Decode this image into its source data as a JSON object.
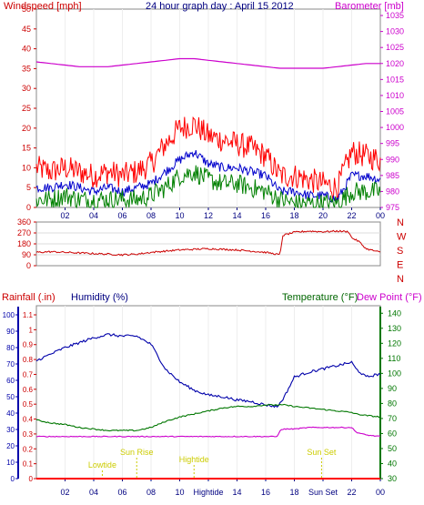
{
  "wind_panel": {
    "title": "24 hour graph day : April 15 2012",
    "left_label": "Windspeed [mph]",
    "right_label": "Barometer [mb]",
    "left_ticks": [
      "0",
      "5",
      "10",
      "15",
      "20",
      "25",
      "30",
      "35",
      "40",
      "45",
      "50"
    ],
    "right_ticks": [
      "975",
      "980",
      "985",
      "990",
      "995",
      "1000",
      "1005",
      "1010",
      "1015",
      "1020",
      "1025",
      "1030",
      "1035"
    ],
    "x_ticks": [
      "02",
      "04",
      "06",
      "08",
      "10",
      "12",
      "14",
      "16",
      "18",
      "20",
      "22",
      "00"
    ]
  },
  "direction_panel": {
    "left_ticks": [
      "0",
      "90",
      "180",
      "270",
      "360"
    ],
    "compass_labels": [
      "N",
      "W",
      "S",
      "E",
      "N"
    ]
  },
  "bottom_panel": {
    "rain_label": "Rainfall (.in)",
    "humidity_label": "Humidity (%)",
    "temperature_label": "Temperature (°F)",
    "dewpoint_label": "Dew Point (°F)",
    "rain_ticks": [
      "0",
      "0.1",
      "0.2",
      "0.3",
      "0.4",
      "0.5",
      "0.6",
      "0.7",
      "0.8",
      "0.9",
      "1",
      "1.1"
    ],
    "humidity_ticks": [
      "0",
      "10",
      "20",
      "30",
      "40",
      "50",
      "60",
      "70",
      "80",
      "90",
      "100"
    ],
    "temp_ticks": [
      "30",
      "40",
      "50",
      "60",
      "70",
      "80",
      "90",
      "100",
      "110",
      "120",
      "130",
      "140"
    ],
    "x_ticks": [
      "02",
      "04",
      "06",
      "08",
      "10",
      "Hightide",
      "14",
      "16",
      "18",
      "Sun Set",
      "22",
      "00"
    ],
    "annotations": [
      {
        "text": "Lowtide",
        "hour": 4.6
      },
      {
        "text": "Sun Rise",
        "hour": 7.0
      },
      {
        "text": "Hightide",
        "hour": 11.0
      },
      {
        "text": "Sun Set",
        "hour": 19.9
      }
    ]
  },
  "colors": {
    "wind_gust": "#ff0000",
    "wind_avg": "#0000cc",
    "wind_min": "#008000",
    "barometer": "#cc00cc",
    "direction": "#cc0000",
    "humidity": "#0000aa",
    "temperature": "#007700",
    "dewpoint": "#cc00cc",
    "rain": "#ff0000",
    "annotation": "#cccc00"
  },
  "chart_data": [
    {
      "type": "line",
      "title": "24 hour graph day : April 15 2012",
      "ylabel": "Windspeed [mph]",
      "y2label": "Barometer [mb]",
      "ylim": [
        0,
        50
      ],
      "y2lim": [
        975,
        1037
      ],
      "xlim": [
        0,
        24
      ],
      "x": [
        0,
        1,
        2,
        3,
        4,
        5,
        6,
        7,
        8,
        9,
        10,
        11,
        12,
        13,
        14,
        15,
        16,
        17,
        18,
        19,
        20,
        21,
        22,
        23,
        24
      ],
      "series": [
        {
          "key": "gust",
          "axis": "left",
          "values": [
            10,
            9,
            10,
            9,
            8,
            9,
            8,
            9,
            11,
            16,
            20,
            21,
            18,
            17,
            16,
            15,
            13,
            8,
            8,
            7,
            6,
            5,
            14,
            13,
            12
          ]
        },
        {
          "key": "avg",
          "axis": "left",
          "values": [
            5,
            5,
            6,
            5,
            4,
            5,
            4,
            5,
            6,
            9,
            12,
            14,
            11,
            10,
            10,
            9,
            8,
            4,
            4,
            3,
            3,
            2,
            8,
            8,
            7
          ]
        },
        {
          "key": "min",
          "axis": "left",
          "values": [
            2,
            2,
            3,
            2,
            2,
            2,
            2,
            2,
            3,
            5,
            8,
            9,
            7,
            6,
            6,
            5,
            4,
            2,
            1,
            1,
            1,
            1,
            4,
            4,
            4
          ]
        },
        {
          "key": "barometer",
          "axis": "right",
          "values": [
            1020.5,
            1020,
            1019.5,
            1019,
            1019,
            1019,
            1019.5,
            1020,
            1020.5,
            1021,
            1021.5,
            1021.5,
            1021,
            1020.5,
            1020,
            1019.5,
            1019,
            1018.5,
            1018.5,
            1018.5,
            1018.5,
            1019,
            1019.5,
            1020,
            1020
          ]
        }
      ]
    },
    {
      "type": "line",
      "ylim": [
        0,
        360
      ],
      "xlim": [
        0,
        24
      ],
      "x": [
        0,
        1,
        2,
        3,
        4,
        5,
        6,
        7,
        8,
        9,
        10,
        11,
        12,
        13,
        14,
        15,
        16,
        17,
        17.2,
        18,
        19,
        20,
        21,
        21.8,
        22,
        22.5,
        23,
        24
      ],
      "series": [
        {
          "key": "direction",
          "values": [
            110,
            115,
            110,
            105,
            100,
            95,
            90,
            95,
            110,
            120,
            130,
            135,
            140,
            135,
            130,
            120,
            110,
            90,
            250,
            275,
            285,
            280,
            285,
            280,
            230,
            200,
            140,
            110
          ]
        }
      ]
    },
    {
      "type": "line",
      "xlim": [
        0,
        24
      ],
      "ylim": [
        0,
        100
      ],
      "y2lim": [
        30,
        145
      ],
      "x": [
        0,
        1,
        2,
        3,
        4,
        5,
        6,
        7,
        8,
        9,
        10,
        11,
        12,
        13,
        14,
        15,
        16,
        16.8,
        17,
        17.3,
        18,
        19,
        20,
        21,
        22,
        22.3,
        23,
        24
      ],
      "series": [
        {
          "key": "humidity",
          "axis": "left",
          "values": [
            72,
            76,
            80,
            83,
            86,
            88,
            87,
            87,
            82,
            67,
            59,
            54,
            51,
            50,
            48,
            47,
            45,
            44,
            46,
            50,
            62,
            65,
            67,
            69,
            71,
            67,
            62,
            64
          ]
        },
        {
          "key": "temperature",
          "axis": "right",
          "values": [
            69,
            67,
            66,
            64,
            63,
            62,
            62,
            62,
            64,
            68,
            71,
            73,
            75,
            77,
            78,
            78,
            79,
            79,
            79,
            79,
            78,
            77,
            76,
            75,
            74,
            73,
            72,
            71
          ]
        },
        {
          "key": "dewpoint",
          "axis": "right",
          "values": [
            58,
            58,
            58,
            58,
            58,
            58,
            58,
            58,
            58,
            58,
            58,
            58,
            58,
            58,
            58,
            58,
            58,
            58,
            62,
            63,
            63,
            64,
            64,
            64,
            64,
            61,
            59,
            58
          ]
        },
        {
          "key": "rainfall",
          "axis": "left",
          "values": [
            0,
            0,
            0,
            0,
            0,
            0,
            0,
            0,
            0,
            0,
            0,
            0,
            0,
            0,
            0,
            0,
            0,
            0,
            0,
            0,
            0,
            0,
            0,
            0,
            0,
            0,
            0,
            0
          ]
        }
      ]
    }
  ]
}
